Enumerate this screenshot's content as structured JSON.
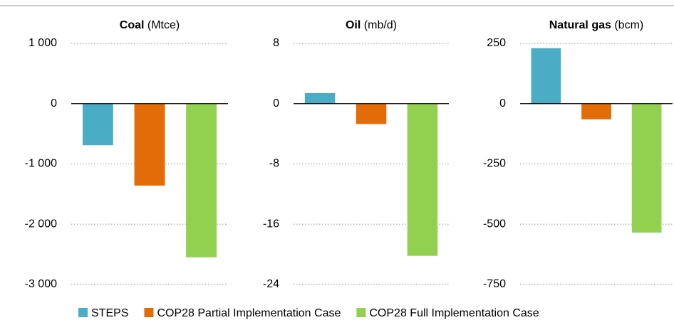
{
  "chart_data": [
    {
      "type": "bar",
      "title": "Coal",
      "unit": "(Mtce)",
      "values": [
        -690,
        -1360,
        -2550
      ],
      "ylim": [
        -3000,
        1000
      ],
      "yticks": [
        {
          "value": 1000,
          "label": "1 000"
        },
        0,
        {
          "value": -1000,
          "label": "-1 000"
        },
        {
          "value": -2000,
          "label": "-2 000"
        },
        {
          "value": -3000,
          "label": "-3 000"
        }
      ],
      "grid": true
    },
    {
      "type": "bar",
      "title": "Oil",
      "unit": "(mb/d)",
      "values": [
        1.4,
        -2.7,
        -20.2
      ],
      "ylim": [
        -24,
        8
      ],
      "yticks": [
        8,
        0,
        -8,
        -16,
        -24
      ],
      "grid": true
    },
    {
      "type": "bar",
      "title": "Natural gas",
      "unit": "(bcm)",
      "values": [
        230,
        -65,
        -535
      ],
      "ylim": [
        -750,
        250
      ],
      "yticks": [
        250,
        0,
        -250,
        -500,
        -750
      ],
      "grid": true
    }
  ],
  "legend": {
    "entries": [
      {
        "name": "STEPS",
        "color": "#4bacc6"
      },
      {
        "name": "COP28 Partial Implementation Case",
        "color": "#e36c09"
      },
      {
        "name": "COP28 Full Implementation Case",
        "color": "#92d050"
      }
    ]
  }
}
